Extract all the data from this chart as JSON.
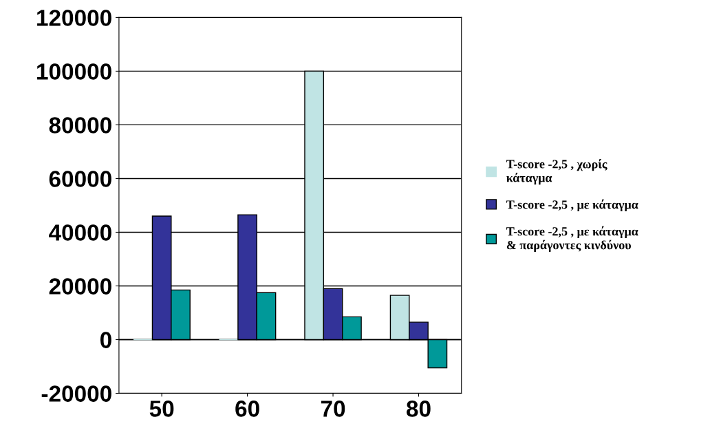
{
  "chart_data": {
    "type": "bar",
    "categories": [
      "50",
      "60",
      "70",
      "80"
    ],
    "series": [
      {
        "name": "T-score -2,5 , χωρίς\nκάταγμα",
        "color": "#c0e4e4",
        "values": [
          0,
          0,
          100000,
          16500
        ]
      },
      {
        "name": "T-score -2,5 , με κάταγμα",
        "color": "#333399",
        "values": [
          46000,
          46500,
          19000,
          6500
        ]
      },
      {
        "name": "T-score -2,5 , με κάταγμα\n& παράγοντες κινδύνου",
        "color": "#009999",
        "values": [
          18500,
          17500,
          8500,
          -10500
        ]
      }
    ],
    "ylim": [
      -20000,
      120000
    ],
    "yticks": [
      -20000,
      0,
      20000,
      40000,
      60000,
      80000,
      100000,
      120000
    ],
    "grid": "y",
    "legend": "right"
  }
}
